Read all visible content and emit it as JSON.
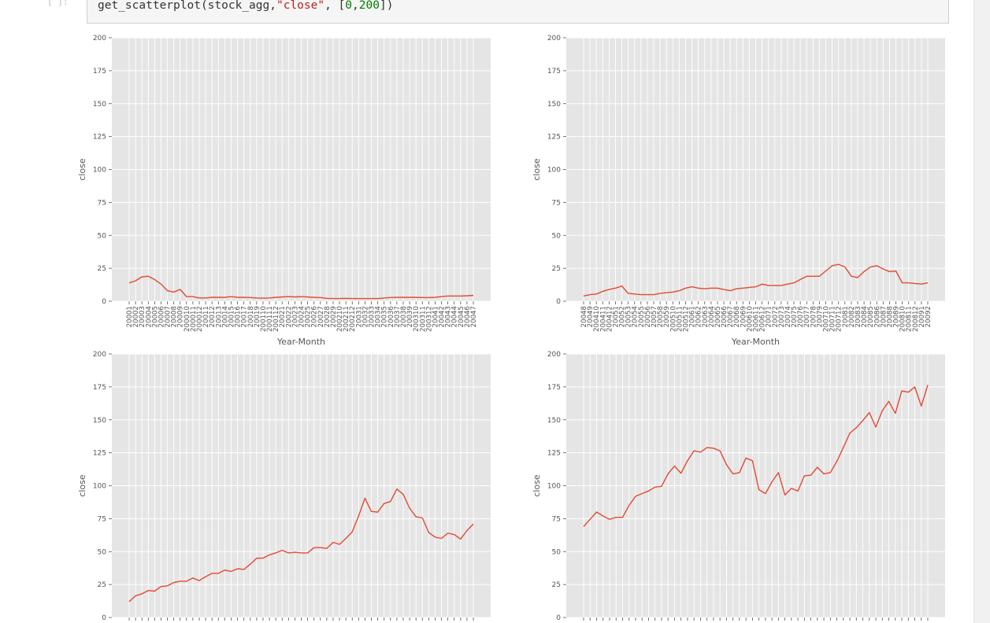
{
  "cell": {
    "prompt": "[ ]:",
    "code_parts": [
      {
        "text": "get_scatterplot(stock_agg,",
        "cls": ""
      },
      {
        "text": "\"close\"",
        "cls": "str"
      },
      {
        "text": ", [",
        "cls": ""
      },
      {
        "text": "0",
        "cls": "num"
      },
      {
        "text": ",",
        "cls": ""
      },
      {
        "text": "200",
        "cls": "num"
      },
      {
        "text": "])",
        "cls": ""
      }
    ]
  },
  "colors": {
    "line": "#e24a33",
    "plot_bg": "#e5e5e5",
    "grid": "#ffffff"
  },
  "chart_data": [
    {
      "type": "line",
      "xlabel": "Year-Month",
      "ylabel": "close",
      "ylim": [
        0,
        200
      ],
      "yticks": [
        0,
        25,
        50,
        75,
        100,
        125,
        150,
        175,
        200
      ],
      "grid": true,
      "categories": [
        "20001",
        "20002",
        "20003",
        "20004",
        "20005",
        "20006",
        "20007",
        "20008",
        "20009",
        "200010",
        "200011",
        "200012",
        "20011",
        "20012",
        "20013",
        "20014",
        "20015",
        "20016",
        "20017",
        "20018",
        "20019",
        "200110",
        "200111",
        "200112",
        "20021",
        "20022",
        "20023",
        "20024",
        "20025",
        "20026",
        "20027",
        "20028",
        "20029",
        "200210",
        "200211",
        "200212",
        "20031",
        "20032",
        "20033",
        "20034",
        "20035",
        "20036",
        "20037",
        "20038",
        "20039",
        "200310",
        "200311",
        "200312",
        "20041",
        "20042",
        "20043",
        "20044",
        "20045",
        "20046",
        "20047"
      ],
      "values": [
        14,
        15.5,
        18.5,
        19,
        16.5,
        13,
        8,
        7,
        9,
        3.5,
        3.5,
        2.5,
        2.5,
        3,
        3,
        3,
        3.5,
        3,
        3,
        2.8,
        2.5,
        2.3,
        2.5,
        3,
        3.3,
        3.5,
        3.3,
        3.5,
        3.3,
        3,
        2.8,
        2.2,
        2,
        2,
        2.2,
        2,
        2,
        2,
        2,
        2,
        2.5,
        2.8,
        3,
        3,
        3,
        3,
        2.8,
        2.8,
        3,
        3.5,
        4,
        4,
        4,
        4.2,
        4.5
      ]
    },
    {
      "type": "line",
      "xlabel": "Year-Month",
      "ylabel": "close",
      "ylim": [
        0,
        200
      ],
      "yticks": [
        0,
        25,
        50,
        75,
        100,
        125,
        150,
        175,
        200
      ],
      "grid": true,
      "categories": [
        "20048",
        "20049",
        "200410",
        "200411",
        "200412",
        "20051",
        "20052",
        "20053",
        "20054",
        "20055",
        "20056",
        "20057",
        "20058",
        "20059",
        "200510",
        "200511",
        "200512",
        "20061",
        "20062",
        "20063",
        "20064",
        "20065",
        "20066",
        "20067",
        "20068",
        "20069",
        "200610",
        "200611",
        "200612",
        "20071",
        "20072",
        "20073",
        "20074",
        "20075",
        "20076",
        "20077",
        "20078",
        "20079",
        "200710",
        "200711",
        "200712",
        "20081",
        "20082",
        "20083",
        "20084",
        "20085",
        "20086",
        "20087",
        "20088",
        "20089",
        "200810",
        "200811",
        "200812",
        "20091",
        "20092"
      ],
      "values": [
        4,
        5,
        5.5,
        7.5,
        9,
        10,
        11.5,
        6,
        5.5,
        5,
        5,
        5,
        6,
        6.5,
        7,
        8,
        10,
        11,
        10,
        9.5,
        10,
        10,
        9,
        8,
        9.5,
        10,
        10.5,
        11,
        13,
        12,
        12,
        12,
        13,
        14,
        16.5,
        19,
        19,
        19,
        23,
        27,
        28,
        26,
        19,
        18,
        22.5,
        26,
        27,
        24.5,
        22.5,
        23,
        14,
        14,
        13.5,
        13,
        14
      ]
    },
    {
      "type": "line",
      "ylabel": "close",
      "ylim": [
        0,
        200
      ],
      "yticks": [
        0,
        25,
        50,
        75,
        100,
        125,
        150,
        175,
        200
      ],
      "grid": true,
      "values": [
        12,
        16.5,
        18,
        20.5,
        20,
        23.5,
        24,
        26.5,
        27.5,
        27.5,
        30,
        28,
        31,
        33.5,
        33.5,
        36,
        35,
        37,
        36.5,
        40.5,
        45,
        45,
        47.5,
        49,
        51,
        49,
        49.5,
        49,
        49,
        53,
        53,
        52.5,
        57,
        55.5,
        60,
        65,
        77,
        90.5,
        80.5,
        80,
        86.5,
        88,
        97.5,
        93.5,
        83,
        76.5,
        75.5,
        64.5,
        61,
        60,
        64,
        63,
        59.5,
        66,
        71
      ]
    },
    {
      "type": "line",
      "ylabel": "close",
      "ylim": [
        0,
        200
      ],
      "yticks": [
        0,
        25,
        50,
        75,
        100,
        125,
        150,
        175,
        200
      ],
      "grid": true,
      "values": [
        69,
        74.5,
        80,
        77,
        74.5,
        76,
        76,
        85,
        92,
        94,
        96,
        99,
        99.5,
        109,
        115,
        109.5,
        119,
        126.5,
        125.5,
        129,
        128.5,
        126.5,
        116,
        109,
        110,
        121,
        119,
        97,
        94,
        103,
        110,
        93,
        98,
        96,
        107.5,
        108,
        114,
        109,
        110,
        118.5,
        129,
        140,
        144,
        149.5,
        155.5,
        144.5,
        157,
        164,
        155,
        172,
        171,
        175,
        160.5,
        176.5
      ]
    }
  ]
}
